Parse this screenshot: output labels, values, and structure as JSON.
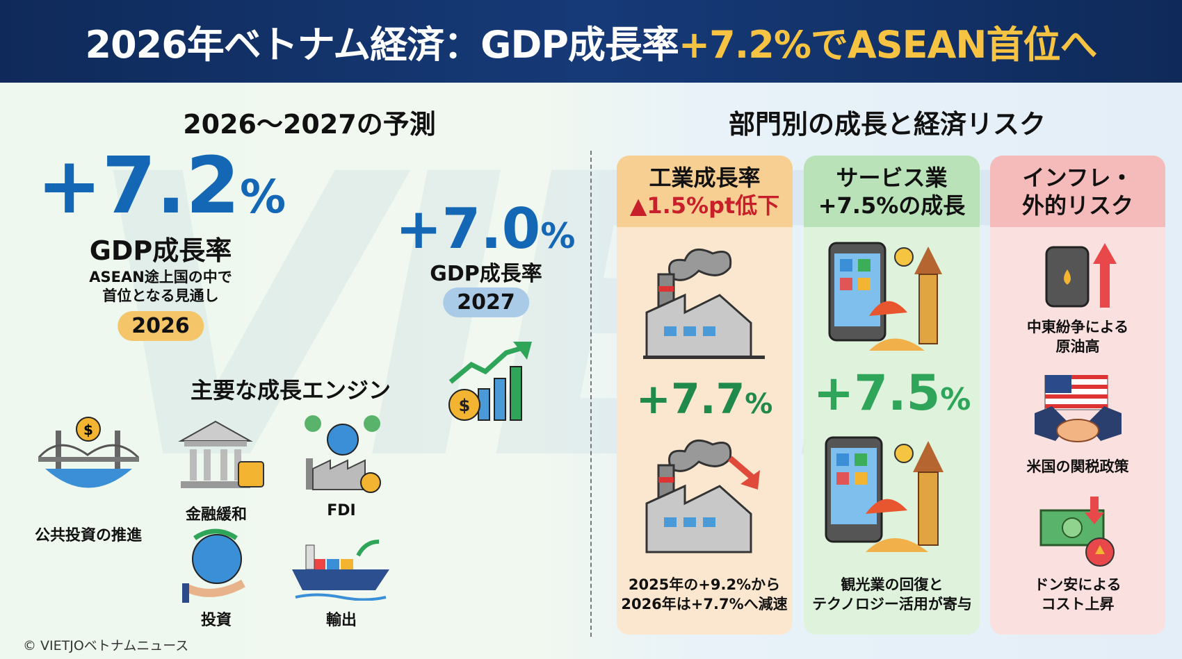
{
  "header": {
    "title_pre": "2026年ベトナム経済：GDP成長率",
    "title_highlight": "+7.2%でASEAN首位へ"
  },
  "left": {
    "title": "2026〜2027の予測",
    "y2026": {
      "value": "+7.2",
      "unit": "%",
      "label": "GDP成長率",
      "note1": "ASEAN途上国の中で",
      "note2": "首位となる見通し",
      "year": "2026"
    },
    "y2027": {
      "value": "+7.0",
      "unit": "%",
      "label": "GDP成長率",
      "year": "2027"
    },
    "engines_title": "主要な成長エンジン",
    "engines": [
      "公共投資の推進",
      "金融緩和",
      "FDI",
      "投資",
      "輸出"
    ]
  },
  "right": {
    "title": "部門別の成長と経済リスク",
    "cards": [
      {
        "h1": "工業成長率",
        "h2": "▲1.5%pt低下",
        "value": "+7.7",
        "unit": "%",
        "cap1": "2025年の+9.2%から",
        "cap2": "2026年は+7.7%へ減速"
      },
      {
        "h1": "サービス業",
        "h2": "+7.5%の成長",
        "value": "+7.5",
        "unit": "%",
        "cap1": "観光業の回復と",
        "cap2": "テクノロジー活用が寄与"
      },
      {
        "h1": "インフレ・",
        "h2": "外的リスク",
        "risks": [
          {
            "l1": "中東紛争による",
            "l2": "原油高"
          },
          {
            "l1": "米国の関税政策",
            "l2": ""
          },
          {
            "l1": "ドン安による",
            "l2": "コスト上昇"
          }
        ]
      }
    ]
  },
  "copyright": "© VIETJOベトナムニュース",
  "colors": {
    "navy": "#13336b",
    "gold": "#f6c343",
    "blue": "#1467b4",
    "green": "#1f9a4e",
    "red": "#c8202a"
  }
}
